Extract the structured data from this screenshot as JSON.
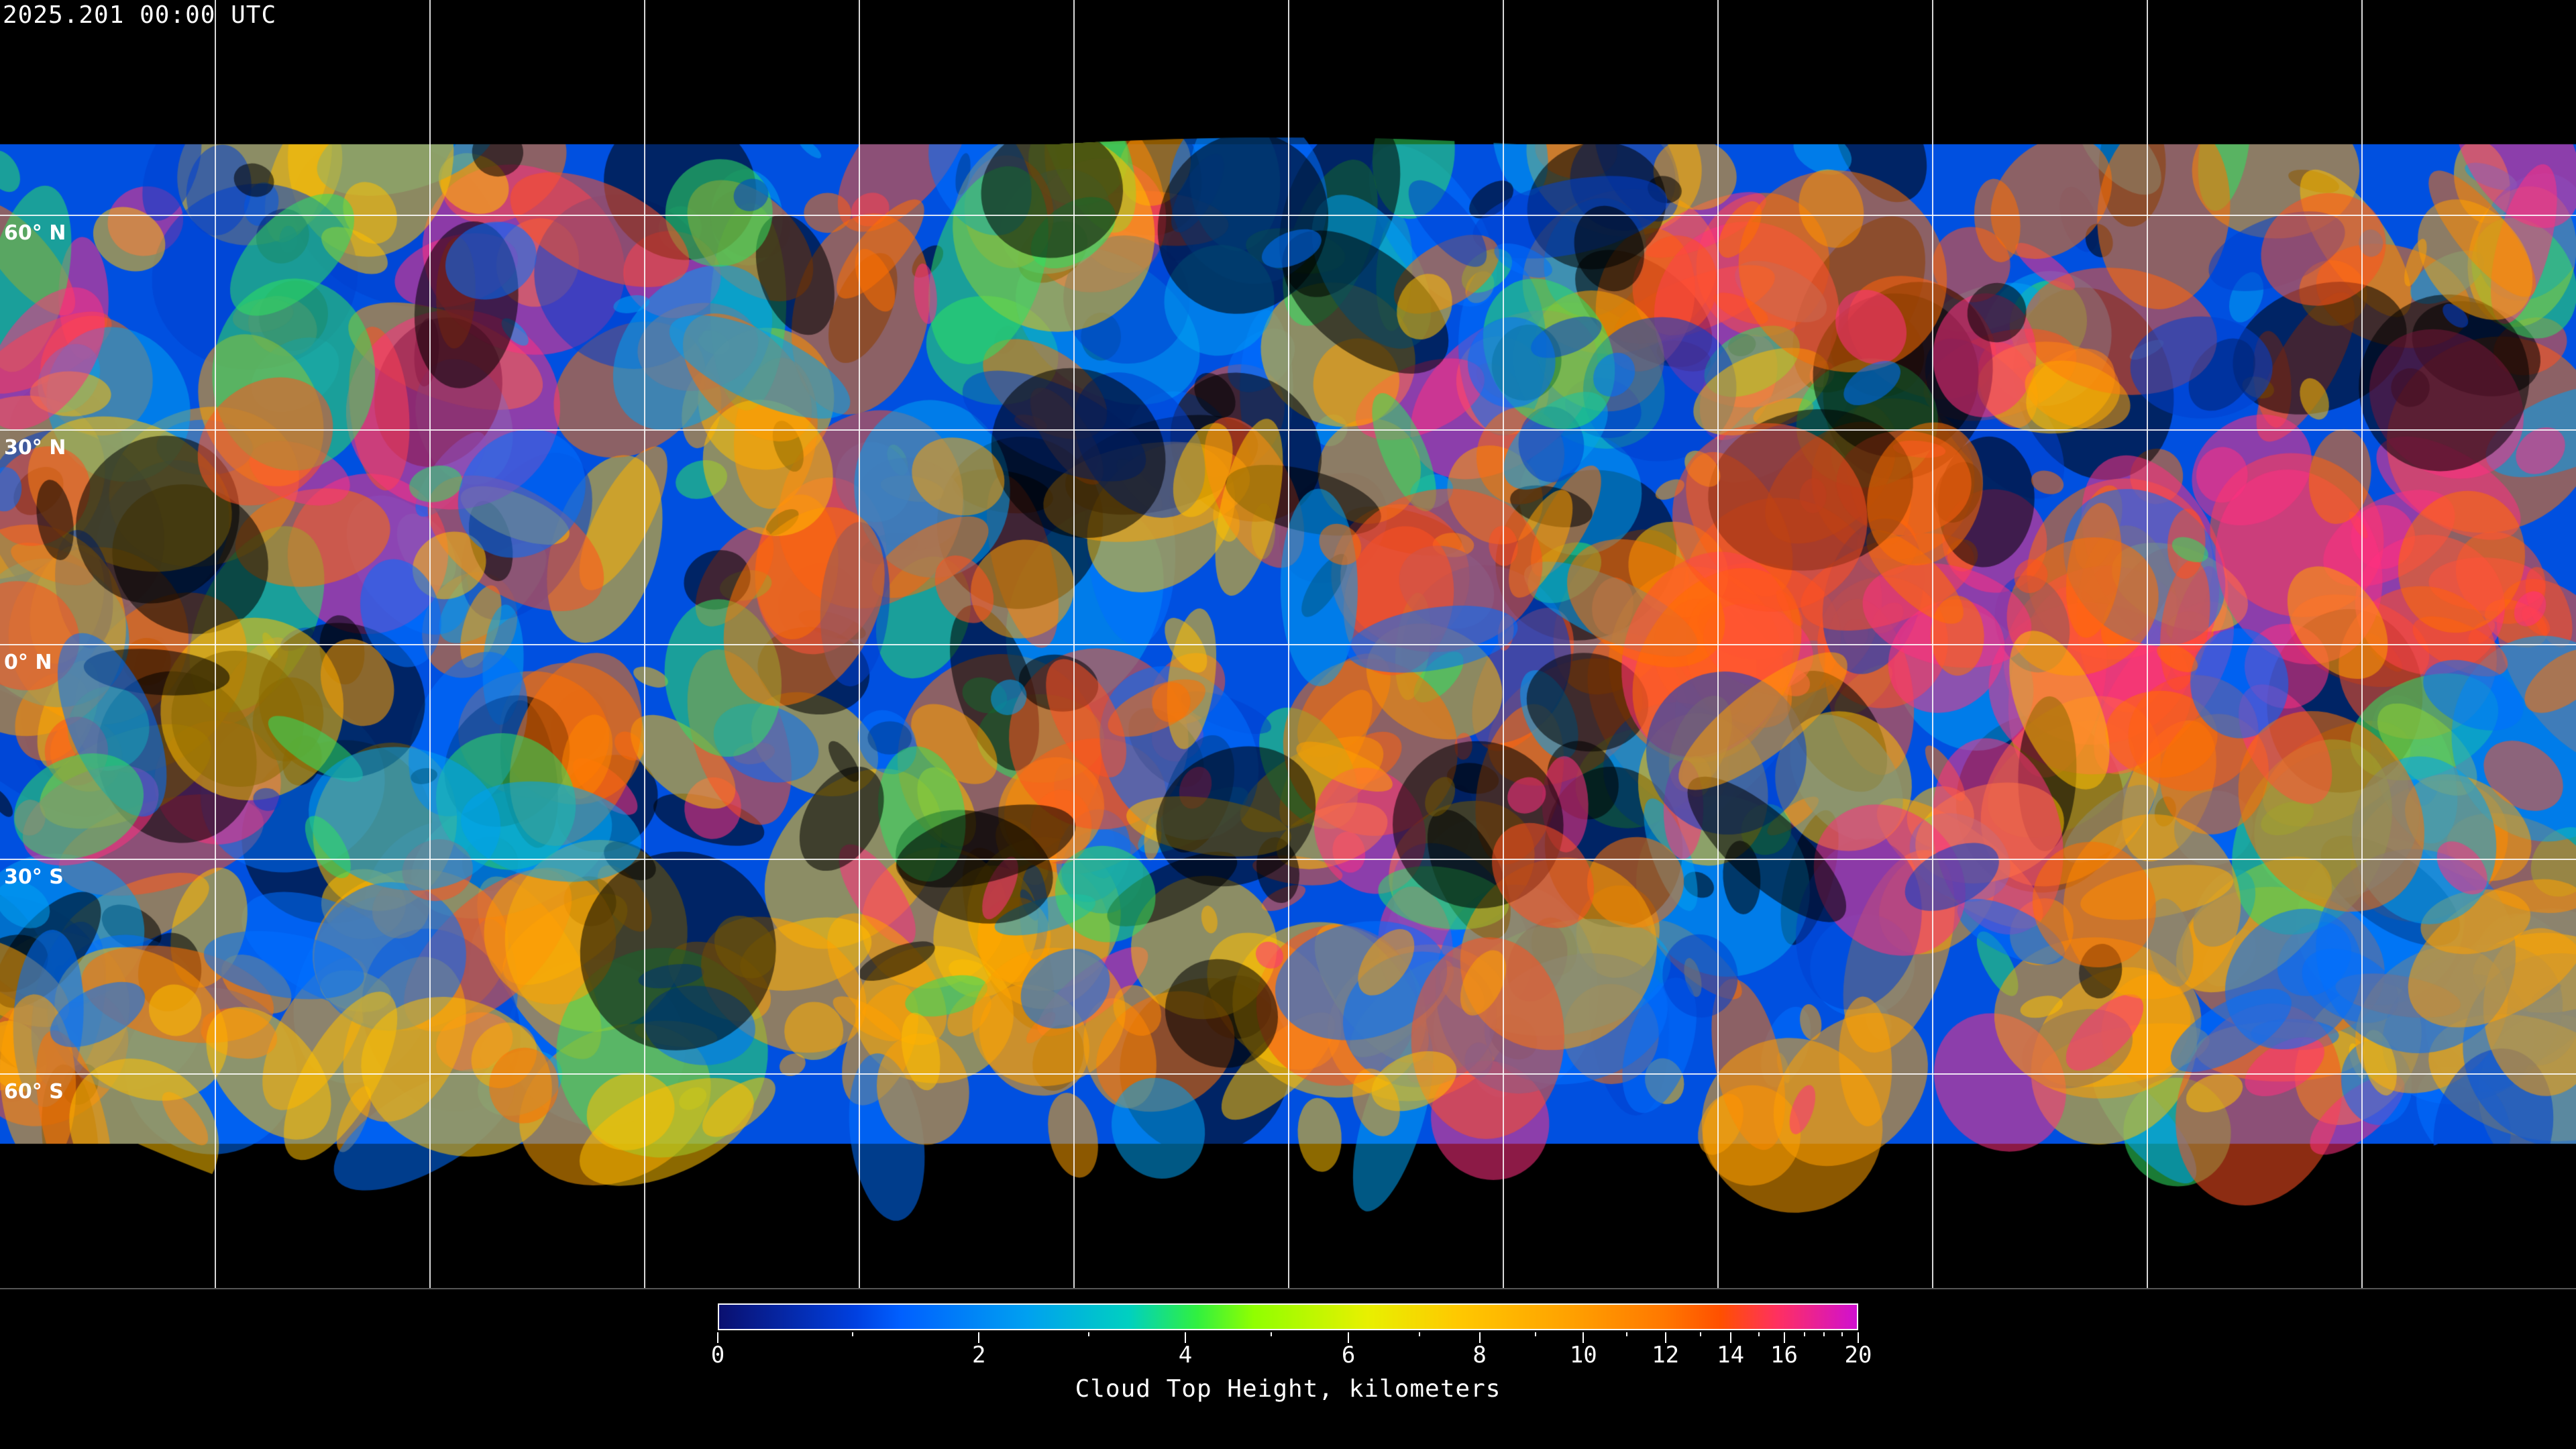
{
  "title": "2025.201 00:00 UTC",
  "map": {
    "projection": "equirectangular",
    "lat_labels": [
      "60° N",
      "30° N",
      "0° N",
      "30° S",
      "60° S"
    ],
    "grid": true
  },
  "colorbar": {
    "label": "Cloud Top Height, kilometers",
    "range": [
      0,
      20
    ],
    "tick_labels": [
      "0",
      "2",
      "4",
      "6",
      "8",
      "10",
      "12",
      "14",
      "16",
      "20"
    ],
    "colors": [
      "#0a1070",
      "#0060ff",
      "#00a0f0",
      "#30f040",
      "#90ff00",
      "#e8f000",
      "#ffc800",
      "#ffa000",
      "#ff5000",
      "#d010d0"
    ]
  }
}
